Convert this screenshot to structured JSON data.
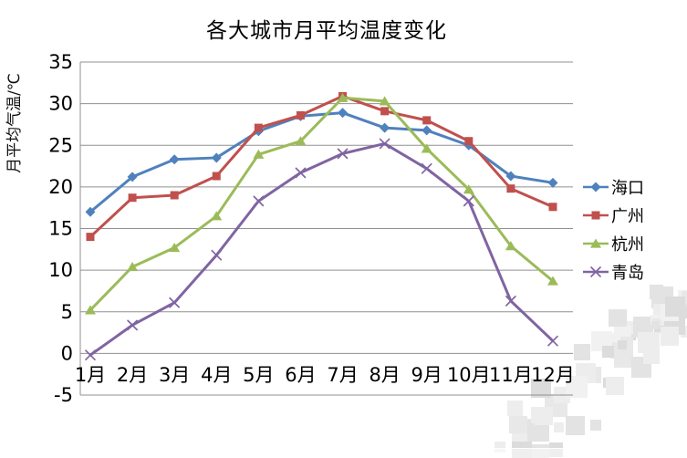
{
  "chart_data": {
    "type": "line",
    "title": "各大城市月平均温度变化",
    "ylabel": "月平均气温/℃",
    "xlabel": "",
    "categories": [
      "1月",
      "2月",
      "3月",
      "4月",
      "5月",
      "6月",
      "7月",
      "8月",
      "9月",
      "10月",
      "11月",
      "12月"
    ],
    "series": [
      {
        "id": "haikou",
        "name": "海口",
        "color": "#4F81BD",
        "marker": "diamond",
        "values": [
          17.0,
          21.2,
          23.3,
          23.5,
          26.7,
          28.5,
          28.9,
          27.1,
          26.8,
          25.0,
          21.3,
          20.5
        ]
      },
      {
        "id": "guangzhou",
        "name": "广州",
        "color": "#C0504D",
        "marker": "square",
        "values": [
          14.0,
          18.7,
          19.0,
          21.3,
          27.1,
          28.6,
          30.9,
          29.1,
          28.0,
          25.5,
          19.8,
          17.6
        ]
      },
      {
        "id": "hangzhou",
        "name": "杭州",
        "color": "#9BBB59",
        "marker": "triangle",
        "values": [
          5.2,
          10.4,
          12.7,
          16.5,
          23.9,
          25.5,
          30.7,
          30.3,
          24.6,
          19.7,
          12.9,
          8.7
        ]
      },
      {
        "id": "qingdao",
        "name": "青岛",
        "color": "#8064A2",
        "marker": "x",
        "values": [
          -0.2,
          3.4,
          6.1,
          11.8,
          18.3,
          21.7,
          24.0,
          25.2,
          22.2,
          18.3,
          6.3,
          1.5
        ]
      }
    ],
    "ylim": [
      -5,
      35
    ],
    "ytick_step": 5,
    "yticks": [
      35,
      30,
      25,
      20,
      15,
      10,
      5,
      0,
      -5
    ],
    "grid": true,
    "gridline_color": "#909090",
    "legend_position": "right"
  }
}
